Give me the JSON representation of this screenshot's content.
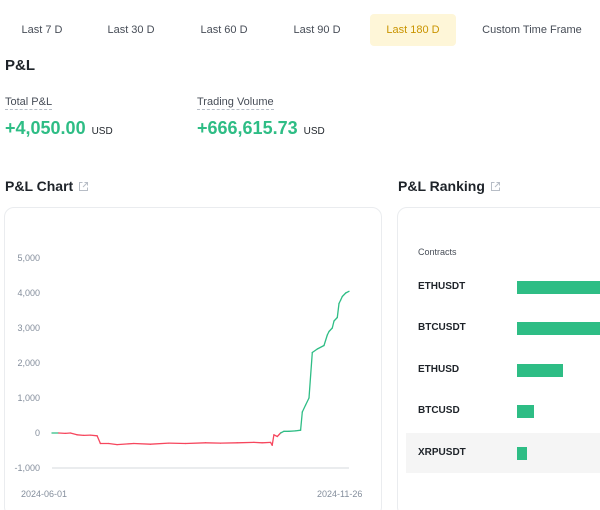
{
  "tabs": [
    {
      "label": "Last 7 D",
      "active": false
    },
    {
      "label": "Last 30 D",
      "active": false
    },
    {
      "label": "Last 60 D",
      "active": false
    },
    {
      "label": "Last 90 D",
      "active": false
    },
    {
      "label": "Last 180 D",
      "active": true
    },
    {
      "label": "Custom Time Frame",
      "active": false
    }
  ],
  "pnl_section": {
    "title": "P&L"
  },
  "stats": {
    "total_pnl": {
      "label": "Total P&L",
      "value": "+4,050.00",
      "unit": "USD"
    },
    "trading_volume": {
      "label": "Trading Volume",
      "value": "+666,615.73",
      "unit": "USD"
    }
  },
  "chart_section": {
    "title": "P&L Chart"
  },
  "ranking_section": {
    "title": "P&L Ranking",
    "header": "Contracts"
  },
  "ranking": [
    {
      "contract": "ETHUSDT",
      "share": 1.0
    },
    {
      "contract": "BTCUSDT",
      "share": 1.0
    },
    {
      "contract": "ETHUSD",
      "share": 0.46
    },
    {
      "contract": "BTCUSD",
      "share": 0.17
    },
    {
      "contract": "XRPUSDT",
      "share": 0.1
    }
  ],
  "colors": {
    "positive": "#2ebd85",
    "negative": "#f6465d",
    "active_tab_bg": "#fef6d8",
    "active_tab_text": "#c99400"
  },
  "chart_data": {
    "type": "line",
    "title": "",
    "xlabel": "",
    "ylabel": "",
    "y_ticks": [
      "5,000",
      "4,000",
      "3,000",
      "2,000",
      "1,000",
      "0",
      "-1,000"
    ],
    "x_ticks": [
      "2024-06-01",
      "2024-11-26"
    ],
    "ylim": [
      -1000,
      5000
    ],
    "xlim": [
      "2024-06-01",
      "2024-11-26"
    ],
    "grid": false,
    "series": [
      {
        "points": [
          [
            "2024-06-01",
            0
          ],
          [
            "2024-06-05",
            0
          ],
          [
            "2024-06-09",
            -10
          ],
          [
            "2024-06-12",
            0
          ],
          [
            "2024-06-16",
            -50
          ],
          [
            "2024-06-20",
            -70
          ],
          [
            "2024-06-24",
            -60
          ],
          [
            "2024-06-28",
            -80
          ],
          [
            "2024-06-30",
            -300
          ],
          [
            "2024-07-05",
            -300
          ],
          [
            "2024-07-10",
            -330
          ],
          [
            "2024-07-20",
            -300
          ],
          [
            "2024-07-30",
            -320
          ],
          [
            "2024-08-10",
            -290
          ],
          [
            "2024-08-20",
            -300
          ],
          [
            "2024-09-01",
            -280
          ],
          [
            "2024-09-10",
            -290
          ],
          [
            "2024-09-20",
            -280
          ],
          [
            "2024-09-30",
            -270
          ],
          [
            "2024-10-05",
            -280
          ],
          [
            "2024-10-10",
            -270
          ],
          [
            "2024-10-11",
            -350
          ],
          [
            "2024-10-12",
            -50
          ],
          [
            "2024-10-14",
            -100
          ],
          [
            "2024-10-16",
            0
          ],
          [
            "2024-10-18",
            50
          ],
          [
            "2024-10-21",
            50
          ],
          [
            "2024-10-25",
            60
          ],
          [
            "2024-10-28",
            80
          ],
          [
            "2024-10-29",
            600
          ],
          [
            "2024-10-31",
            800
          ],
          [
            "2024-11-02",
            1000
          ],
          [
            "2024-11-04",
            2300
          ],
          [
            "2024-11-07",
            2400
          ],
          [
            "2024-11-11",
            2500
          ],
          [
            "2024-11-13",
            2800
          ],
          [
            "2024-11-14",
            2900
          ],
          [
            "2024-11-16",
            3000
          ],
          [
            "2024-11-17",
            3200
          ],
          [
            "2024-11-19",
            3300
          ],
          [
            "2024-11-20",
            3700
          ],
          [
            "2024-11-21",
            3800
          ],
          [
            "2024-11-22",
            3900
          ],
          [
            "2024-11-24",
            4000
          ],
          [
            "2024-11-26",
            4050
          ]
        ]
      }
    ]
  }
}
